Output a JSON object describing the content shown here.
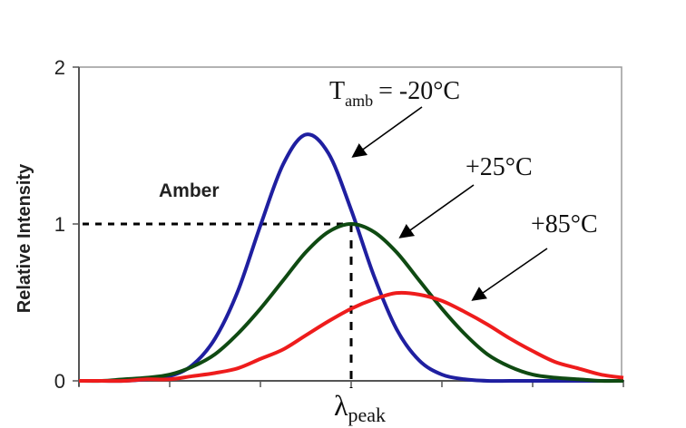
{
  "chart_data": {
    "type": "line",
    "title": "",
    "xlabel": "λ",
    "xlabel_sub": "peak",
    "ylabel": "Relative Intensity",
    "xlim": [
      0,
      6
    ],
    "ylim": [
      0,
      2
    ],
    "yticks": [
      "0",
      "1",
      "2"
    ],
    "x_tick_count": 7,
    "grid": false,
    "x": [
      0,
      0.25,
      0.5,
      0.75,
      1,
      1.25,
      1.5,
      1.75,
      2,
      2.25,
      2.5,
      2.75,
      3,
      3.25,
      3.5,
      3.75,
      4,
      4.25,
      4.5,
      4.75,
      5,
      5.25,
      5.5,
      5.75,
      6
    ],
    "series": [
      {
        "name": "-20°C",
        "color": "#1f1fa0",
        "values": [
          0,
          0,
          0,
          0.01,
          0.03,
          0.1,
          0.27,
          0.57,
          0.99,
          1.38,
          1.57,
          1.45,
          1.09,
          0.67,
          0.33,
          0.13,
          0.04,
          0.01,
          0,
          0,
          0,
          0,
          0,
          0,
          0
        ]
      },
      {
        "name": "+25°C",
        "color": "#0f4a12",
        "values": [
          0,
          0,
          0.01,
          0.02,
          0.04,
          0.09,
          0.17,
          0.3,
          0.46,
          0.64,
          0.82,
          0.95,
          1.0,
          0.95,
          0.82,
          0.64,
          0.46,
          0.3,
          0.17,
          0.09,
          0.04,
          0.02,
          0.01,
          0,
          0
        ]
      },
      {
        "name": "+85°C",
        "color": "#ee1c1c",
        "values": [
          0,
          0,
          0,
          0.01,
          0.01,
          0.03,
          0.05,
          0.08,
          0.14,
          0.2,
          0.29,
          0.38,
          0.46,
          0.52,
          0.56,
          0.55,
          0.51,
          0.44,
          0.36,
          0.27,
          0.19,
          0.12,
          0.08,
          0.04,
          0.02
        ]
      }
    ],
    "reference": {
      "x": 3,
      "y": 1,
      "style": "dashed"
    },
    "annotations": {
      "material": "Amber",
      "t_prefix": "T",
      "t_sub": "amb",
      "cold": "= -20°C",
      "room": "+25°C",
      "hot": "+85°C"
    }
  }
}
